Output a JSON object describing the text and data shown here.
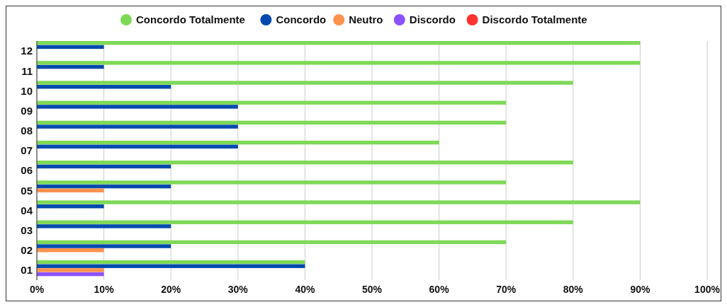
{
  "chart_data": {
    "type": "bar",
    "orientation": "horizontal",
    "categories": [
      "12",
      "11",
      "10",
      "09",
      "08",
      "07",
      "06",
      "05",
      "04",
      "03",
      "02",
      "01"
    ],
    "series": [
      {
        "name": "Concordo Totalmente",
        "color": "#7ed957",
        "values": [
          90,
          90,
          80,
          70,
          70,
          60,
          80,
          70,
          90,
          80,
          70,
          40
        ]
      },
      {
        "name": "Concordo",
        "color": "#004aad",
        "values": [
          10,
          10,
          20,
          30,
          30,
          30,
          20,
          20,
          10,
          20,
          20,
          40
        ]
      },
      {
        "name": "Neutro",
        "color": "#ff914d",
        "values": [
          0,
          0,
          0,
          0,
          0,
          0,
          0,
          10,
          0,
          0,
          10,
          10
        ]
      },
      {
        "name": "Discordo",
        "color": "#8c52ff",
        "values": [
          0,
          0,
          0,
          0,
          0,
          0,
          0,
          0,
          0,
          0,
          0,
          10
        ]
      },
      {
        "name": "Discordo Totalmente",
        "color": "#ff3131",
        "values": [
          0,
          0,
          0,
          0,
          0,
          0,
          0,
          0,
          0,
          0,
          0,
          0
        ]
      }
    ],
    "xlim": [
      0,
      100
    ],
    "xticks": [
      {
        "value": 0,
        "label": "0%"
      },
      {
        "value": 10,
        "label": "10%"
      },
      {
        "value": 20,
        "label": "20%"
      },
      {
        "value": 30,
        "label": "30%"
      },
      {
        "value": 40,
        "label": "40%"
      },
      {
        "value": 50,
        "label": "50%"
      },
      {
        "value": 60,
        "label": "60%"
      },
      {
        "value": 70,
        "label": "70%"
      },
      {
        "value": 80,
        "label": "80%"
      },
      {
        "value": 90,
        "label": "90%"
      },
      {
        "value": 100,
        "label": "100%"
      }
    ],
    "grid": "x",
    "legend": "top"
  }
}
